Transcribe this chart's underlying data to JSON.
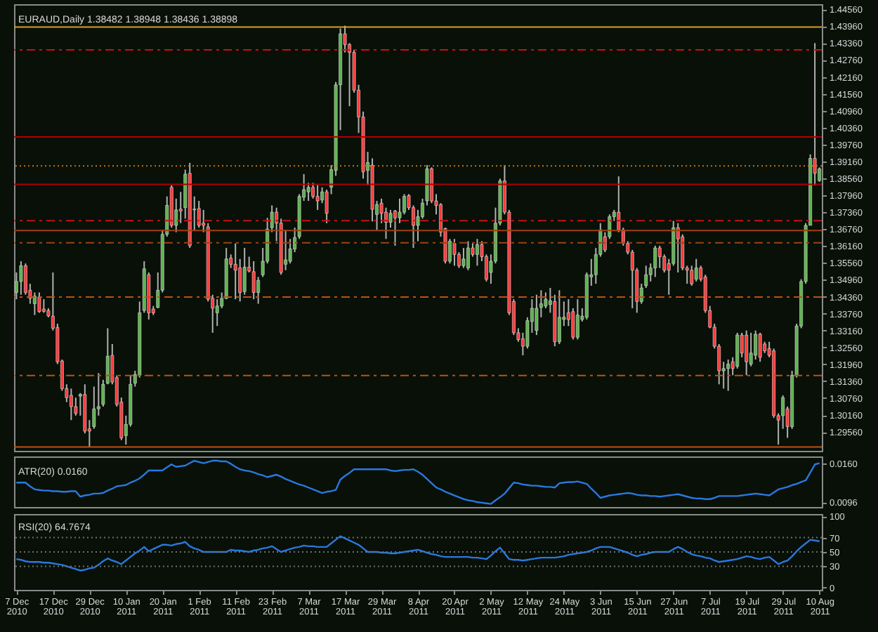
{
  "chart_data": [
    {
      "type": "candlestick",
      "title": "EURAUD,Daily 1.38482 1.38948 1.38436 1.38898",
      "tick_labels": "y",
      "categories": [
        null,
        null,
        null,
        null,
        null,
        null,
        null,
        null,
        null,
        null,
        null,
        null,
        null,
        null,
        null,
        null,
        null,
        null,
        null,
        null,
        null,
        null,
        null,
        null,
        null,
        null,
        null,
        null,
        null,
        null,
        null,
        null,
        null,
        null,
        null,
        null,
        null,
        null,
        null,
        null,
        null,
        null,
        null,
        null,
        null,
        null,
        null,
        null,
        null,
        null,
        null,
        null,
        null,
        null,
        null,
        null,
        null,
        null,
        null,
        null,
        null,
        null,
        null,
        null,
        null,
        null,
        null,
        null,
        null,
        null,
        null,
        null,
        null,
        null,
        null,
        null,
        null,
        null,
        null,
        null,
        null,
        null,
        null,
        null,
        null,
        null,
        null,
        null,
        null,
        null,
        null,
        null,
        null,
        null,
        null,
        null,
        null,
        null,
        null,
        null,
        null,
        null,
        null,
        null,
        null,
        null,
        null,
        null,
        null,
        null,
        null,
        null,
        null,
        null,
        null,
        null,
        null,
        null,
        null,
        null,
        null,
        null,
        null,
        null,
        null,
        null,
        null,
        null,
        null,
        null,
        null,
        null,
        null,
        null,
        null,
        null,
        null,
        null,
        null,
        null,
        null,
        null,
        null,
        null,
        null,
        null,
        null,
        null,
        null,
        null,
        null,
        null,
        null,
        null,
        null,
        null,
        null,
        null,
        null,
        null,
        null,
        null,
        null,
        null,
        null,
        null,
        null,
        null,
        null,
        null,
        null,
        null,
        null,
        null,
        null,
        null,
        null
      ],
      "ohlc": [
        [
          1.3451,
          1.3522,
          1.3427,
          1.349
        ],
        [
          1.349,
          1.3562,
          1.3443,
          1.3546
        ],
        [
          1.3546,
          1.3554,
          1.3443,
          1.3451
        ],
        [
          1.3459,
          1.3482,
          1.3411,
          1.343
        ],
        [
          1.3411,
          1.3451,
          1.3371,
          1.3438
        ],
        [
          1.3435,
          1.3451,
          1.3379,
          1.3383
        ],
        [
          1.3392,
          1.3427,
          1.3379,
          1.3384
        ],
        [
          1.3387,
          1.3395,
          1.3363,
          1.3368
        ],
        [
          1.3367,
          1.3522,
          1.3316,
          1.3324
        ],
        [
          1.3327,
          1.334,
          1.3197,
          1.3205
        ],
        [
          1.3208,
          1.3213,
          1.3102,
          1.311
        ],
        [
          1.311,
          1.3125,
          1.3062,
          1.3078
        ],
        [
          1.3086,
          1.311,
          1.2998,
          1.3046
        ],
        [
          1.3046,
          1.3078,
          1.3014,
          1.3022
        ],
        [
          1.3083,
          1.3094,
          1.3014,
          1.3089
        ],
        [
          1.3089,
          1.3125,
          1.2951,
          1.2959
        ],
        [
          1.2967,
          1.2998,
          1.2903,
          1.2959
        ],
        [
          1.2975,
          1.3117,
          1.2967,
          1.3038
        ],
        [
          1.3038,
          1.3165,
          1.3014,
          1.3046
        ],
        [
          1.3054,
          1.3141,
          1.3046,
          1.3125
        ],
        [
          1.3129,
          1.3324,
          1.3125,
          1.3225
        ],
        [
          1.3228,
          1.3268,
          1.3125,
          1.3133
        ],
        [
          1.3149,
          1.3157,
          1.3046,
          1.3054
        ],
        [
          1.3062,
          1.3078,
          1.2927,
          1.2935
        ],
        [
          1.2943,
          1.3014,
          1.2911,
          1.2983
        ],
        [
          1.2983,
          1.3157,
          1.2975,
          1.3125
        ],
        [
          1.3129,
          1.3173,
          1.3117,
          1.316
        ],
        [
          1.3157,
          1.3419,
          1.3149,
          1.3379
        ],
        [
          1.3387,
          1.3562,
          1.3379,
          1.3535
        ],
        [
          1.3514,
          1.3522,
          1.3355,
          1.3379
        ],
        [
          1.3392,
          1.3403,
          1.3371,
          1.3379
        ],
        [
          1.3398,
          1.3522,
          1.3395,
          1.3459
        ],
        [
          1.3459,
          1.3673,
          1.3451,
          1.3657
        ],
        [
          1.3657,
          1.3792,
          1.3649,
          1.376
        ],
        [
          1.3824,
          1.3832,
          1.3681,
          1.3689
        ],
        [
          1.3689,
          1.3784,
          1.3665,
          1.3744
        ],
        [
          1.3747,
          1.3808,
          1.3697,
          1.374
        ],
        [
          1.3752,
          1.3887,
          1.3713,
          1.3871
        ],
        [
          1.3874,
          1.3911,
          1.3609,
          1.3617
        ],
        [
          1.3744,
          1.3792,
          1.3673,
          1.3747
        ],
        [
          1.3749,
          1.3776,
          1.3681,
          1.3689
        ],
        [
          1.3697,
          1.3744,
          1.3665,
          1.3689
        ],
        [
          1.3684,
          1.3697,
          1.3419,
          1.3427
        ],
        [
          1.343,
          1.3443,
          1.3308,
          1.3395
        ],
        [
          1.3379,
          1.3427,
          1.3332,
          1.3403
        ],
        [
          1.3403,
          1.3451,
          1.3395,
          1.343
        ],
        [
          1.343,
          1.3609,
          1.3427,
          1.357
        ],
        [
          1.3573,
          1.3586,
          1.3538,
          1.3551
        ],
        [
          1.3551,
          1.3625,
          1.3427,
          1.353
        ],
        [
          1.3538,
          1.357,
          1.3419,
          1.3451
        ],
        [
          1.3454,
          1.3609,
          1.3443,
          1.3541
        ],
        [
          1.3541,
          1.3578,
          1.3522,
          1.3527
        ],
        [
          1.3525,
          1.3562,
          1.3427,
          1.3451
        ],
        [
          1.3451,
          1.3506,
          1.3411,
          1.3494
        ],
        [
          1.3514,
          1.3609,
          1.3506,
          1.3562
        ],
        [
          1.3562,
          1.3716,
          1.3554,
          1.3676
        ],
        [
          1.3681,
          1.376,
          1.3665,
          1.3736
        ],
        [
          1.3736,
          1.3752,
          1.3633,
          1.3697
        ],
        [
          1.3697,
          1.3713,
          1.3514,
          1.3522
        ],
        [
          1.3551,
          1.3673,
          1.353,
          1.3567
        ],
        [
          1.3562,
          1.3641,
          1.3554,
          1.3606
        ],
        [
          1.3605,
          1.3681,
          1.3594,
          1.3646
        ],
        [
          1.3649,
          1.38,
          1.3641,
          1.3792
        ],
        [
          1.3789,
          1.3871,
          1.3776,
          1.3816
        ],
        [
          1.3808,
          1.384,
          1.3776,
          1.3824
        ],
        [
          1.3824,
          1.384,
          1.3784,
          1.3792
        ],
        [
          1.3792,
          1.3832,
          1.3744,
          1.3776
        ],
        [
          1.3779,
          1.3824,
          1.3768,
          1.3808
        ],
        [
          1.3808,
          1.3816,
          1.3697,
          1.3732
        ],
        [
          1.3824,
          1.3903,
          1.38,
          1.3887
        ],
        [
          1.3884,
          1.4198,
          1.3865,
          1.4188
        ],
        [
          1.4188,
          1.4388,
          1.4027,
          1.4369
        ],
        [
          1.4369,
          1.4398,
          1.4303,
          1.4331
        ],
        [
          1.4331,
          1.4336,
          1.4112,
          1.4303
        ],
        [
          1.4303,
          1.4312,
          1.416,
          1.4169
        ],
        [
          1.4169,
          1.4188,
          1.4017,
          1.4074
        ],
        [
          1.4074,
          1.4093,
          1.3855,
          1.3879
        ],
        [
          1.3884,
          1.395,
          1.3831,
          1.3912
        ],
        [
          1.3903,
          1.3927,
          1.3703,
          1.3746
        ],
        [
          1.3728,
          1.3776,
          1.3673,
          1.3763
        ],
        [
          1.3768,
          1.3784,
          1.3697,
          1.3732
        ],
        [
          1.3736,
          1.3752,
          1.3641,
          1.37
        ],
        [
          1.37,
          1.3744,
          1.3681,
          1.3732
        ],
        [
          1.374,
          1.3744,
          1.3617,
          1.3716
        ],
        [
          1.3716,
          1.3784,
          1.3697,
          1.3736
        ],
        [
          1.3736,
          1.38,
          1.3728,
          1.3792
        ],
        [
          1.3795,
          1.38,
          1.3744,
          1.3752
        ],
        [
          1.3752,
          1.376,
          1.3609,
          1.3689
        ],
        [
          1.3689,
          1.3744,
          1.3633,
          1.372
        ],
        [
          1.372,
          1.3784,
          1.3713,
          1.3768
        ],
        [
          1.3776,
          1.3903,
          1.376,
          1.389
        ],
        [
          1.389,
          1.3895,
          1.3768,
          1.3776
        ],
        [
          1.3776,
          1.38,
          1.3728,
          1.376
        ],
        [
          1.3763,
          1.3768,
          1.3649,
          1.3665
        ],
        [
          1.3678,
          1.3681,
          1.3554,
          1.3562
        ],
        [
          1.3562,
          1.3641,
          1.3554,
          1.3633
        ],
        [
          1.3625,
          1.3641,
          1.3546,
          1.3586
        ],
        [
          1.3586,
          1.3594,
          1.3538,
          1.3546
        ],
        [
          1.3546,
          1.3609,
          1.3538,
          1.357
        ],
        [
          1.3538,
          1.3633,
          1.353,
          1.3609
        ],
        [
          1.3609,
          1.3625,
          1.3578,
          1.3586
        ],
        [
          1.3586,
          1.3641,
          1.3546,
          1.3621
        ],
        [
          1.3621,
          1.3633,
          1.3562,
          1.3578
        ],
        [
          1.3578,
          1.3586,
          1.349,
          1.3498
        ],
        [
          1.3522,
          1.3586,
          1.3482,
          1.3562
        ],
        [
          1.3562,
          1.3752,
          1.3554,
          1.3697
        ],
        [
          1.3697,
          1.3855,
          1.3689,
          1.3847
        ],
        [
          1.3847,
          1.3903,
          1.3728,
          1.3736
        ],
        [
          1.3736,
          1.3744,
          1.3371,
          1.3379
        ],
        [
          1.3419,
          1.3427,
          1.33,
          1.3308
        ],
        [
          1.3308,
          1.3324,
          1.3276,
          1.3284
        ],
        [
          1.3287,
          1.3308,
          1.3228,
          1.326
        ],
        [
          1.326,
          1.3363,
          1.3252,
          1.3351
        ],
        [
          1.3348,
          1.3427,
          1.3308,
          1.3395
        ],
        [
          1.3316,
          1.3443,
          1.33,
          1.3395
        ],
        [
          1.3398,
          1.3459,
          1.3363,
          1.3411
        ],
        [
          1.3403,
          1.3451,
          1.3395,
          1.3427
        ],
        [
          1.3408,
          1.3467,
          1.3379,
          1.3422
        ],
        [
          1.3419,
          1.3443,
          1.326,
          1.3276
        ],
        [
          1.3276,
          1.3459,
          1.3268,
          1.3363
        ],
        [
          1.3355,
          1.3419,
          1.3332,
          1.3363
        ],
        [
          1.3379,
          1.3427,
          1.3332,
          1.3355
        ],
        [
          1.3383,
          1.3395,
          1.3284,
          1.3292
        ],
        [
          1.3292,
          1.3427,
          1.3284,
          1.3371
        ],
        [
          1.3355,
          1.3395,
          1.3348,
          1.3367
        ],
        [
          1.3363,
          1.3522,
          1.3355,
          1.3514
        ],
        [
          1.3506,
          1.357,
          1.3475,
          1.3514
        ],
        [
          1.3514,
          1.3609,
          1.3482,
          1.3586
        ],
        [
          1.3586,
          1.3697,
          1.3578,
          1.3673
        ],
        [
          1.3649,
          1.3665,
          1.3594,
          1.3602
        ],
        [
          1.3649,
          1.3728,
          1.3641,
          1.372
        ],
        [
          1.372,
          1.3744,
          1.3705,
          1.3736
        ],
        [
          1.3736,
          1.3863,
          1.3665,
          1.3673
        ],
        [
          1.3673,
          1.3681,
          1.3617,
          1.3625
        ],
        [
          1.3625,
          1.3633,
          1.3586,
          1.3594
        ],
        [
          1.3594,
          1.3602,
          1.3395,
          1.353
        ],
        [
          1.353,
          1.3538,
          1.3379,
          1.3419
        ],
        [
          1.3419,
          1.3482,
          1.3411,
          1.3467
        ],
        [
          1.3475,
          1.3546,
          1.3467,
          1.3514
        ],
        [
          1.3514,
          1.3554,
          1.349,
          1.3538
        ],
        [
          1.3538,
          1.3617,
          1.3506,
          1.3609
        ],
        [
          1.3609,
          1.3617,
          1.3538,
          1.3578
        ],
        [
          1.3578,
          1.3586,
          1.3522,
          1.353
        ],
        [
          1.3554,
          1.357,
          1.3443,
          1.353
        ],
        [
          1.3554,
          1.3705,
          1.3546,
          1.3681
        ],
        [
          1.3681,
          1.3697,
          1.3522,
          1.3641
        ],
        [
          1.3649,
          1.3657,
          1.353,
          1.3538
        ],
        [
          1.3538,
          1.3546,
          1.3482,
          1.353
        ],
        [
          1.353,
          1.3546,
          1.3475,
          1.3482
        ],
        [
          1.3498,
          1.357,
          1.349,
          1.3538
        ],
        [
          1.3538,
          1.3546,
          1.349,
          1.3498
        ],
        [
          1.3506,
          1.3514,
          1.3379,
          1.3387
        ],
        [
          1.3387,
          1.3403,
          1.3324,
          1.3328
        ],
        [
          1.3328,
          1.334,
          1.3252,
          1.326
        ],
        [
          1.326,
          1.3268,
          1.3125,
          1.3173
        ],
        [
          1.3173,
          1.3205,
          1.311,
          1.3181
        ],
        [
          1.3181,
          1.3213,
          1.3102,
          1.3197
        ],
        [
          1.3205,
          1.3221,
          1.3157,
          1.3181
        ],
        [
          1.3189,
          1.3308,
          1.3181,
          1.33
        ],
        [
          1.33,
          1.3308,
          1.3221,
          1.3236
        ],
        [
          1.33,
          1.3316,
          1.3157,
          1.3205
        ],
        [
          1.3197,
          1.3308,
          1.3189,
          1.3236
        ],
        [
          1.3228,
          1.3316,
          1.3213,
          1.3303
        ],
        [
          1.3303,
          1.3308,
          1.3205,
          1.3221
        ],
        [
          1.3268,
          1.3276,
          1.3236,
          1.3244
        ],
        [
          1.3252,
          1.3276,
          1.3221,
          1.3228
        ],
        [
          1.3244,
          1.3252,
          1.3006,
          1.3014
        ],
        [
          1.3014,
          1.3022,
          1.2911,
          1.2998
        ],
        [
          1.3014,
          1.3086,
          1.2967,
          1.3078
        ],
        [
          1.3038,
          1.3046,
          1.2935,
          1.2975
        ],
        [
          1.2975,
          1.3173,
          1.2967,
          1.3157
        ],
        [
          1.3157,
          1.334,
          1.3149,
          1.3332
        ],
        [
          1.3332,
          1.3498,
          1.3324,
          1.349
        ],
        [
          1.349,
          1.3697,
          1.3482,
          1.3689
        ],
        [
          1.3689,
          1.3941,
          1.3689,
          1.3927
        ],
        [
          1.3927,
          1.4336,
          1.3831,
          1.3874
        ],
        [
          1.38482,
          1.38948,
          1.38436,
          1.38898
        ]
      ],
      "ylim": [
        1.2889,
        1.4474
      ],
      "yticks": [
        {
          "value": 1.2956,
          "label": "1.29560"
        },
        {
          "value": 1.3016,
          "label": "1.30160"
        },
        {
          "value": 1.3076,
          "label": "1.30760"
        },
        {
          "value": 1.3136,
          "label": "1.31360"
        },
        {
          "value": 1.3196,
          "label": "1.31960"
        },
        {
          "value": 1.3256,
          "label": "1.32560"
        },
        {
          "value": 1.3316,
          "label": "1.33160"
        },
        {
          "value": 1.3376,
          "label": "1.33760"
        },
        {
          "value": 1.3436,
          "label": "1.34360"
        },
        {
          "value": 1.3496,
          "label": "1.34960"
        },
        {
          "value": 1.3556,
          "label": "1.35560"
        },
        {
          "value": 1.3616,
          "label": "1.36160"
        },
        {
          "value": 1.3676,
          "label": "1.36760"
        },
        {
          "value": 1.3736,
          "label": "1.37360"
        },
        {
          "value": 1.3796,
          "label": "1.37960"
        },
        {
          "value": 1.3856,
          "label": "1.38560"
        },
        {
          "value": 1.3916,
          "label": "1.39160"
        },
        {
          "value": 1.3976,
          "label": "1.39760"
        },
        {
          "value": 1.4036,
          "label": "1.40360"
        },
        {
          "value": 1.4096,
          "label": "1.40960"
        },
        {
          "value": 1.4156,
          "label": "1.41560"
        },
        {
          "value": 1.4216,
          "label": "1.42160"
        },
        {
          "value": 1.4276,
          "label": "1.42760"
        },
        {
          "value": 1.4336,
          "label": "1.43360"
        },
        {
          "value": 1.4396,
          "label": "1.43960"
        },
        {
          "value": 1.4456,
          "label": "1.44560"
        }
      ],
      "ref_lines": [
        {
          "axis": "y",
          "value": 1.4393,
          "color": "#d8a020",
          "line_style": "solid"
        },
        {
          "axis": "y",
          "value": 1.4312,
          "color": "#c81010",
          "line_style": "dashed"
        },
        {
          "axis": "y",
          "value": 1.4003,
          "color": "#b00000",
          "line_style": "solid"
        },
        {
          "axis": "y",
          "value": 1.39,
          "color": "#c87010",
          "line_style": "dotted"
        },
        {
          "axis": "y",
          "value": 1.3835,
          "color": "#b00000",
          "line_style": "solid"
        },
        {
          "axis": "y",
          "value": 1.3706,
          "color": "#c81010",
          "line_style": "dashed"
        },
        {
          "axis": "y",
          "value": 1.3671,
          "color": "#a04010",
          "line_style": "solid"
        },
        {
          "axis": "y",
          "value": 1.3627,
          "color": "#a04010",
          "line_style": "dashed"
        },
        {
          "axis": "y",
          "value": 1.3435,
          "color": "#c05010",
          "line_style": "dashed"
        },
        {
          "axis": "y",
          "value": 1.3156,
          "color": "#c05010",
          "line_style": "dashed"
        },
        {
          "axis": "y",
          "value": 1.2903,
          "color": "#c05010",
          "line_style": "solid"
        }
      ]
    },
    {
      "type": "line",
      "title": "ATR(20) 0.0160",
      "tick_labels": "y",
      "categories": [
        null,
        null,
        null,
        null,
        null,
        null,
        null,
        null,
        null,
        null,
        null,
        null,
        null,
        null,
        null,
        null,
        null,
        null,
        null,
        null,
        null,
        null,
        null,
        null,
        null,
        null,
        null,
        null,
        null,
        null,
        null,
        null,
        null,
        null,
        null,
        null,
        null,
        null,
        null,
        null,
        null,
        null,
        null,
        null,
        null,
        null,
        null,
        null,
        null,
        null,
        null,
        null,
        null,
        null,
        null,
        null,
        null,
        null,
        null,
        null,
        null,
        null,
        null,
        null,
        null,
        null,
        null,
        null,
        null,
        null,
        null,
        null,
        null,
        null,
        null,
        null,
        null,
        null,
        null,
        null,
        null,
        null,
        null,
        null,
        null,
        null,
        null,
        null,
        null,
        null,
        null,
        null,
        null,
        null,
        null,
        null,
        null,
        null,
        null,
        null,
        null,
        null,
        null,
        null,
        null,
        null,
        null,
        null,
        null,
        null,
        null,
        null,
        null,
        null,
        null,
        null,
        null,
        null,
        null,
        null,
        null,
        null,
        null,
        null,
        null,
        null,
        null,
        null,
        null,
        null,
        null,
        null,
        null,
        null,
        null,
        null,
        null,
        null,
        null,
        null,
        null,
        null,
        null,
        null,
        null,
        null,
        null,
        null,
        null,
        null,
        null,
        null,
        null,
        null,
        null,
        null,
        null,
        null,
        null,
        null,
        null,
        null,
        null,
        null,
        null,
        null,
        null,
        null,
        null,
        null,
        null,
        null,
        null,
        null,
        null,
        null,
        null
      ],
      "series": [
        {
          "color": "#2a78e0",
          "values": [
            0.0128,
            0.0128,
            0.0128,
            0.0122,
            0.0117,
            0.0116,
            0.0115,
            0.0115,
            0.0114,
            0.0114,
            0.0113,
            0.0113,
            0.0114,
            0.0114,
            0.0105,
            0.0107,
            0.0108,
            0.011,
            0.011,
            0.0111,
            0.0115,
            0.0118,
            0.0122,
            0.0123,
            0.0124,
            0.0128,
            0.0131,
            0.0135,
            0.0141,
            0.0148,
            0.0148,
            0.0148,
            0.0148,
            0.0153,
            0.0158,
            0.0154,
            0.0155,
            0.0156,
            0.016,
            0.0164,
            0.0162,
            0.016,
            0.0162,
            0.0164,
            0.0164,
            0.0163,
            0.0163,
            0.0159,
            0.0154,
            0.015,
            0.0148,
            0.0147,
            0.0145,
            0.0142,
            0.014,
            0.0137,
            0.0139,
            0.0141,
            0.0138,
            0.0134,
            0.0131,
            0.0128,
            0.0125,
            0.0123,
            0.012,
            0.0117,
            0.0114,
            0.0111,
            0.0113,
            0.0114,
            0.0116,
            0.0133,
            0.0139,
            0.0144,
            0.015,
            0.015,
            0.015,
            0.015,
            0.015,
            0.015,
            0.015,
            0.015,
            0.0148,
            0.0147,
            0.0148,
            0.0149,
            0.0149,
            0.015,
            0.0146,
            0.0141,
            0.0134,
            0.0127,
            0.012,
            0.0117,
            0.0113,
            0.011,
            0.0107,
            0.0104,
            0.0101,
            0.0099,
            0.0098,
            0.0096,
            0.0095,
            0.0094,
            0.0093,
            0.0099,
            0.0104,
            0.011,
            0.0119,
            0.0128,
            0.0127,
            0.0125,
            0.0124,
            0.0123,
            0.0123,
            0.0122,
            0.0121,
            0.0121,
            0.012,
            0.0127,
            0.0128,
            0.0129,
            0.0129,
            0.013,
            0.0128,
            0.0126,
            0.0118,
            0.0111,
            0.0103,
            0.0105,
            0.0107,
            0.0108,
            0.0109,
            0.011,
            0.0111,
            0.011,
            0.0108,
            0.0107,
            0.0107,
            0.0106,
            0.0106,
            0.0105,
            0.0106,
            0.0107,
            0.0108,
            0.0109,
            0.0107,
            0.0105,
            0.0103,
            0.0102,
            0.0102,
            0.0101,
            0.0101,
            0.0103,
            0.0106,
            0.0106,
            0.0106,
            0.0106,
            0.0106,
            0.0107,
            0.0108,
            0.0109,
            0.011,
            0.0109,
            0.0108,
            0.0107,
            0.0112,
            0.0117,
            0.0119,
            0.0121,
            0.0124,
            0.0126,
            0.0129,
            0.0132,
            0.0145,
            0.0158,
            0.016
          ]
        }
      ],
      "ylim": [
        0.0088,
        0.0171
      ],
      "yticks": [
        {
          "value": 0.016,
          "label": "0.0160"
        },
        {
          "value": 0.0096,
          "label": "0.0096"
        }
      ]
    },
    {
      "type": "line",
      "title": "RSI(20) 64.7674",
      "categories": [
        "7 Dec 2010",
        null,
        null,
        null,
        null,
        null,
        null,
        null,
        "17 Dec 2010",
        null,
        null,
        null,
        null,
        null,
        null,
        null,
        "29 Dec 2010",
        null,
        null,
        null,
        null,
        null,
        null,
        null,
        "10 Jan 2011",
        null,
        null,
        null,
        null,
        null,
        null,
        null,
        "20 Jan 2011",
        null,
        null,
        null,
        null,
        null,
        null,
        null,
        "1 Feb 2011",
        null,
        null,
        null,
        null,
        null,
        null,
        null,
        "11 Feb 2011",
        null,
        null,
        null,
        null,
        null,
        null,
        null,
        "23 Feb 2011",
        null,
        null,
        null,
        null,
        null,
        null,
        null,
        "7 Mar 2011",
        null,
        null,
        null,
        null,
        null,
        null,
        null,
        "17 Mar 2011",
        null,
        null,
        null,
        null,
        null,
        null,
        null,
        "29 Mar 2011",
        null,
        null,
        null,
        null,
        null,
        null,
        null,
        "8 Apr 2011",
        null,
        null,
        null,
        null,
        null,
        null,
        null,
        "20 Apr 2011",
        null,
        null,
        null,
        null,
        null,
        null,
        null,
        "2 May 2011",
        null,
        null,
        null,
        null,
        null,
        null,
        null,
        "12 May 2011",
        null,
        null,
        null,
        null,
        null,
        null,
        null,
        "24 May 2011",
        null,
        null,
        null,
        null,
        null,
        null,
        null,
        "3 Jun 2011",
        null,
        null,
        null,
        null,
        null,
        null,
        null,
        "15 Jun 2011",
        null,
        null,
        null,
        null,
        null,
        null,
        null,
        "27 Jun 2011",
        null,
        null,
        null,
        null,
        null,
        null,
        null,
        "7 Jul 2011",
        null,
        null,
        null,
        null,
        null,
        null,
        null,
        "19 Jul 2011",
        null,
        null,
        null,
        null,
        null,
        null,
        null,
        "29 Jul 2011",
        null,
        null,
        null,
        null,
        null,
        null,
        null,
        "10 Aug 2011"
      ],
      "series": [
        {
          "color": "#2a78e0",
          "values": [
            40,
            39,
            37,
            36,
            36,
            36,
            35,
            35,
            34,
            33,
            32,
            30,
            28,
            26,
            24,
            25,
            27,
            28,
            32,
            37,
            41,
            38,
            36,
            33,
            38,
            43,
            48,
            52,
            57,
            51,
            54,
            57,
            60,
            60,
            59,
            61,
            62,
            64,
            58,
            55,
            53,
            50,
            50,
            50,
            50,
            50,
            50,
            53,
            52,
            52,
            51,
            50,
            52,
            53,
            55,
            56,
            58,
            54,
            50,
            52,
            54,
            56,
            57,
            59,
            58,
            58,
            57,
            57,
            57,
            62,
            67,
            72,
            69,
            66,
            63,
            60,
            55,
            50,
            50,
            50,
            49,
            49,
            48,
            48,
            49,
            50,
            51,
            52,
            53,
            51,
            49,
            47,
            46,
            44,
            43,
            43,
            43,
            43,
            43,
            43,
            42,
            42,
            41,
            40,
            45,
            51,
            56,
            48,
            40,
            39,
            39,
            38,
            39,
            40,
            41,
            42,
            42,
            42,
            42,
            43,
            44,
            46,
            47,
            48,
            49,
            50,
            52,
            55,
            57,
            57,
            57,
            55,
            53,
            51,
            49,
            46,
            44,
            46,
            47,
            49,
            50,
            50,
            50,
            50,
            54,
            57,
            54,
            50,
            47,
            45,
            44,
            42,
            41,
            38,
            36,
            37,
            38,
            39,
            40,
            42,
            44,
            43,
            41,
            40,
            42,
            43,
            38,
            33,
            36,
            38,
            44,
            51,
            57,
            62,
            67,
            66,
            65
          ]
        }
      ],
      "ylim": [
        -3,
        103
      ],
      "yticks": [
        0,
        30,
        50,
        70,
        100
      ],
      "ref_lines": [
        {
          "axis": "y",
          "value": 70,
          "color": "#707070",
          "line_style": "dotted"
        },
        {
          "axis": "y",
          "value": 50,
          "color": "#707070",
          "line_style": "dotted"
        },
        {
          "axis": "y",
          "value": 30,
          "color": "#707070",
          "line_style": "dotted"
        }
      ]
    }
  ]
}
